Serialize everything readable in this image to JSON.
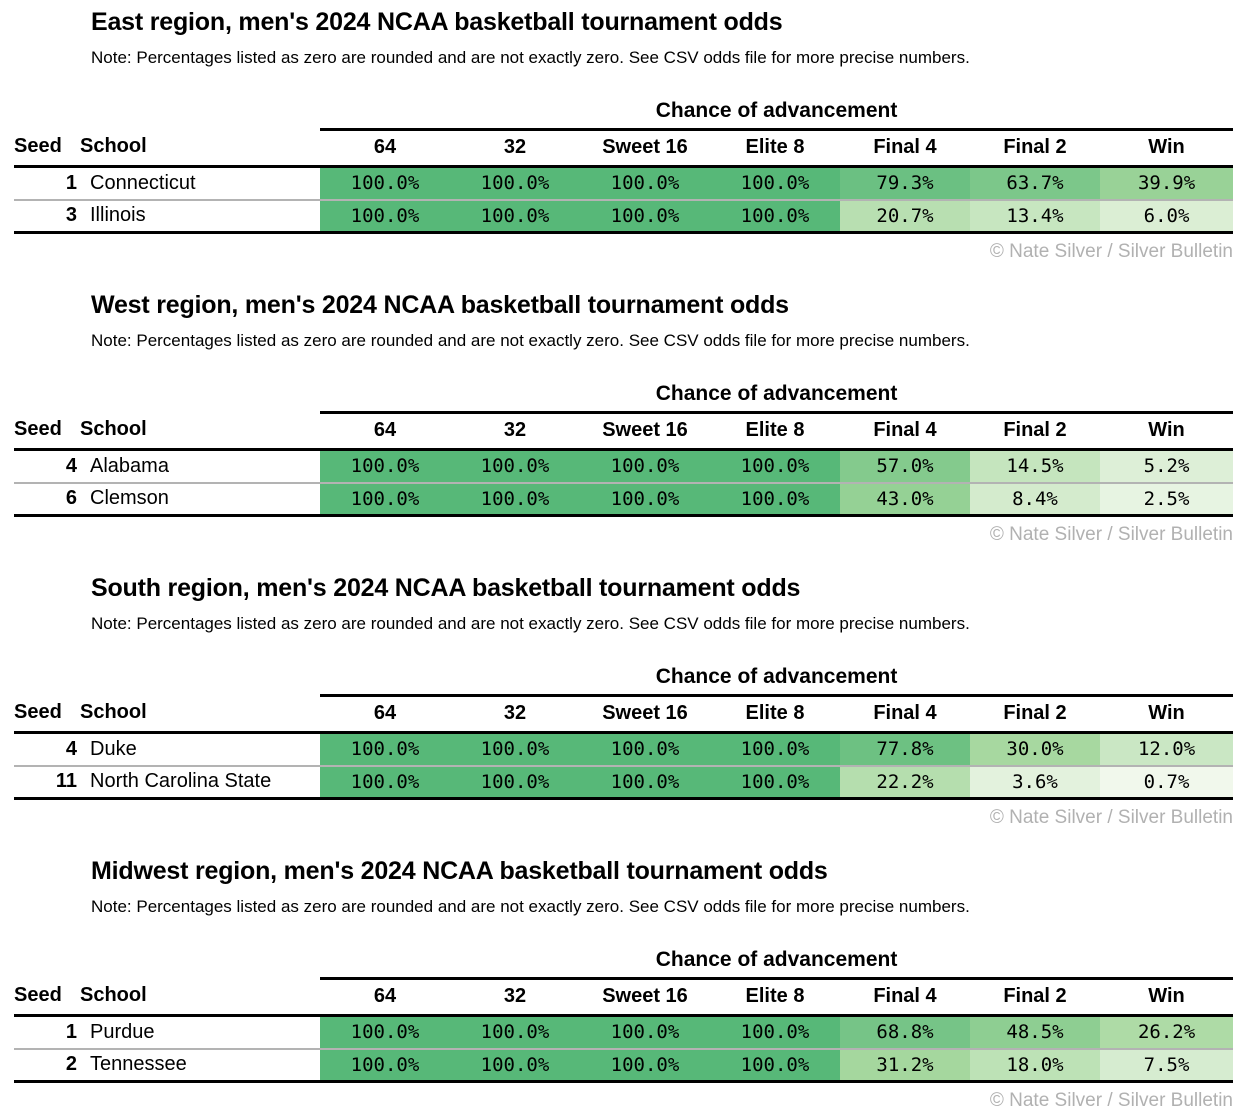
{
  "page": {
    "note": "Note: Percentages listed as zero are rounded and are not exactly zero. See CSV odds file for more precise numbers.",
    "chance_header": "Chance of advancement",
    "attribution": "© Nate Silver / Silver Bulletin",
    "columns": {
      "seed": "Seed",
      "school": "School",
      "rounds": [
        "64",
        "32",
        "Sweet 16",
        "Elite 8",
        "Final 4",
        "Final 2",
        "Win"
      ]
    },
    "colors": {
      "scale_low": "#fafcf5",
      "scale_mid": "#a5d79d",
      "scale_high": "#57b878",
      "scale_exponent": 0.6,
      "row_divider": "#b3b3b3",
      "rule": "#000000",
      "muted_text": "#b1b1b1",
      "text": "#000000"
    }
  },
  "chart_data": [
    {
      "type": "table",
      "title": "East region, men's 2024 NCAA basketball tournament odds",
      "unit": "%",
      "columns": [
        "Seed",
        "School",
        "64",
        "32",
        "Sweet 16",
        "Elite 8",
        "Final 4",
        "Final 2",
        "Win"
      ],
      "rows": [
        {
          "seed": 1,
          "school": "Connecticut",
          "values": [
            100.0,
            100.0,
            100.0,
            100.0,
            79.3,
            63.7,
            39.9
          ]
        },
        {
          "seed": 3,
          "school": "Illinois",
          "values": [
            100.0,
            100.0,
            100.0,
            100.0,
            20.7,
            13.4,
            6.0
          ]
        }
      ]
    },
    {
      "type": "table",
      "title": "West region, men's 2024 NCAA basketball tournament odds",
      "unit": "%",
      "columns": [
        "Seed",
        "School",
        "64",
        "32",
        "Sweet 16",
        "Elite 8",
        "Final 4",
        "Final 2",
        "Win"
      ],
      "rows": [
        {
          "seed": 4,
          "school": "Alabama",
          "values": [
            100.0,
            100.0,
            100.0,
            100.0,
            57.0,
            14.5,
            5.2
          ]
        },
        {
          "seed": 6,
          "school": "Clemson",
          "values": [
            100.0,
            100.0,
            100.0,
            100.0,
            43.0,
            8.4,
            2.5
          ]
        }
      ]
    },
    {
      "type": "table",
      "title": "South region, men's 2024 NCAA basketball tournament odds",
      "unit": "%",
      "columns": [
        "Seed",
        "School",
        "64",
        "32",
        "Sweet 16",
        "Elite 8",
        "Final 4",
        "Final 2",
        "Win"
      ],
      "rows": [
        {
          "seed": 4,
          "school": "Duke",
          "values": [
            100.0,
            100.0,
            100.0,
            100.0,
            77.8,
            30.0,
            12.0
          ]
        },
        {
          "seed": 11,
          "school": "North Carolina State",
          "values": [
            100.0,
            100.0,
            100.0,
            100.0,
            22.2,
            3.6,
            0.7
          ]
        }
      ]
    },
    {
      "type": "table",
      "title": "Midwest region, men's 2024 NCAA basketball tournament odds",
      "unit": "%",
      "columns": [
        "Seed",
        "School",
        "64",
        "32",
        "Sweet 16",
        "Elite 8",
        "Final 4",
        "Final 2",
        "Win"
      ],
      "rows": [
        {
          "seed": 1,
          "school": "Purdue",
          "values": [
            100.0,
            100.0,
            100.0,
            100.0,
            68.8,
            48.5,
            26.2
          ]
        },
        {
          "seed": 2,
          "school": "Tennessee",
          "values": [
            100.0,
            100.0,
            100.0,
            100.0,
            31.2,
            18.0,
            7.5
          ]
        }
      ]
    }
  ]
}
